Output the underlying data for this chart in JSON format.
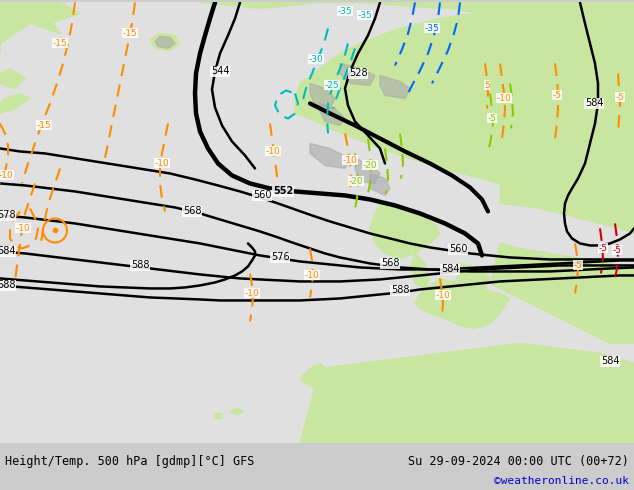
{
  "title_left": "Height/Temp. 500 hPa [gdmp][°C] GFS",
  "title_right": "Su 29-09-2024 00:00 UTC (00+72)",
  "watermark": "©weatheronline.co.uk",
  "fig_width": 6.34,
  "fig_height": 4.9,
  "dpi": 100,
  "land_color": "#c8e6a0",
  "sea_color": "#e0e0e0",
  "coast_color": "#aaaaaa",
  "footer_bg": "#cccccc",
  "black": "#000000",
  "orange": "#ff8c00",
  "red": "#cc0000",
  "blue": "#0066ff",
  "cyan": "#00bbbb",
  "lime": "#88cc00",
  "watermark_color": "#0000cc"
}
